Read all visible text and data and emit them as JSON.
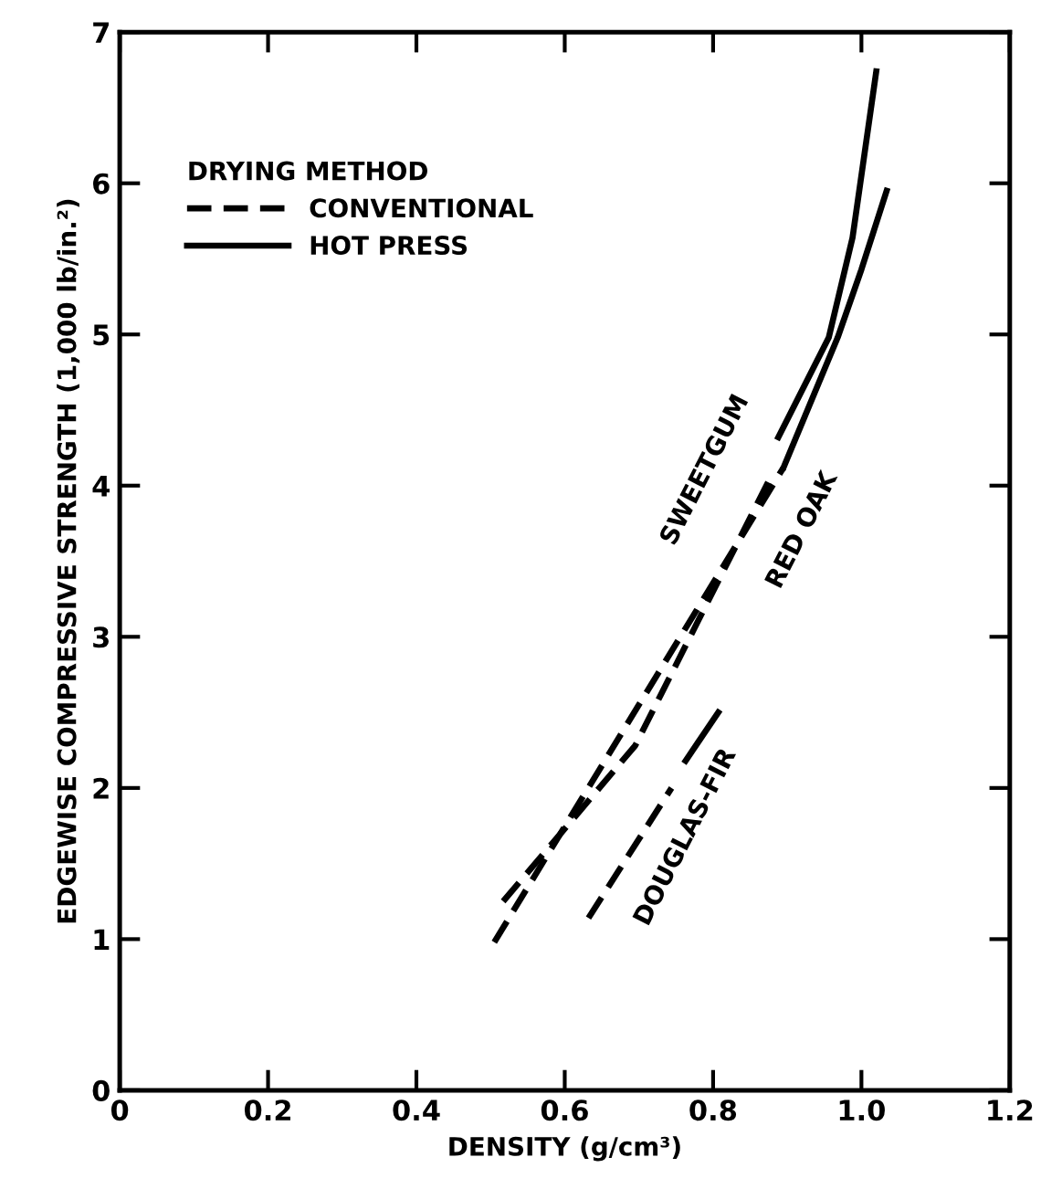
{
  "chart_data": {
    "type": "line",
    "xlabel": "DENSITY (g/cm³)",
    "ylabel": "EDGEWISE COMPRESSIVE STRENGTH (1,000 lb/in.²)",
    "legend_title": "DRYING METHOD",
    "legend": "top left",
    "grid": false,
    "marker": "none",
    "xlim": [
      0,
      1.2
    ],
    "xticks": [
      0,
      0.2,
      0.4,
      0.6,
      0.8,
      {
        "value": 1,
        "label": "1.0"
      },
      1.2
    ],
    "ylim": [
      0,
      7
    ],
    "yticks": [
      0,
      1,
      2,
      3,
      4,
      5,
      6,
      7
    ],
    "series": [
      {
        "name": "CONVENTIONAL",
        "color": "#000000",
        "line_style": "dashed",
        "x": [
          0.517,
          0.695,
          0.878
        ],
        "values": [
          1.25,
          2.28,
          4.06
        ]
      },
      {
        "name": "HOT PRESS",
        "color": "#000000",
        "line_style": "solid",
        "x": [
          0.888,
          0.956,
          0.988,
          1.02
        ],
        "values": [
          4.32,
          4.98,
          5.64,
          6.74
        ]
      },
      {
        "color": "#000000",
        "line_style": "dashed",
        "x": [
          0.505,
          0.895
        ],
        "values": [
          0.98,
          4.12
        ]
      },
      {
        "color": "#000000",
        "line_style": "solid",
        "x": [
          0.895,
          0.968,
          1.0,
          1.034
        ],
        "values": [
          4.12,
          4.98,
          5.43,
          5.95
        ]
      },
      {
        "color": "#000000",
        "line_style": "dashed",
        "x": [
          0.632,
          0.744
        ],
        "values": [
          1.14,
          2.0
        ]
      },
      {
        "color": "#000000",
        "line_style": "solid",
        "x": [
          0.763,
          0.807
        ],
        "values": [
          2.18,
          2.5
        ]
      }
    ],
    "annotations": [
      "SWEETGUM",
      "RED OAK",
      "DOUGLAS-FIR"
    ]
  }
}
